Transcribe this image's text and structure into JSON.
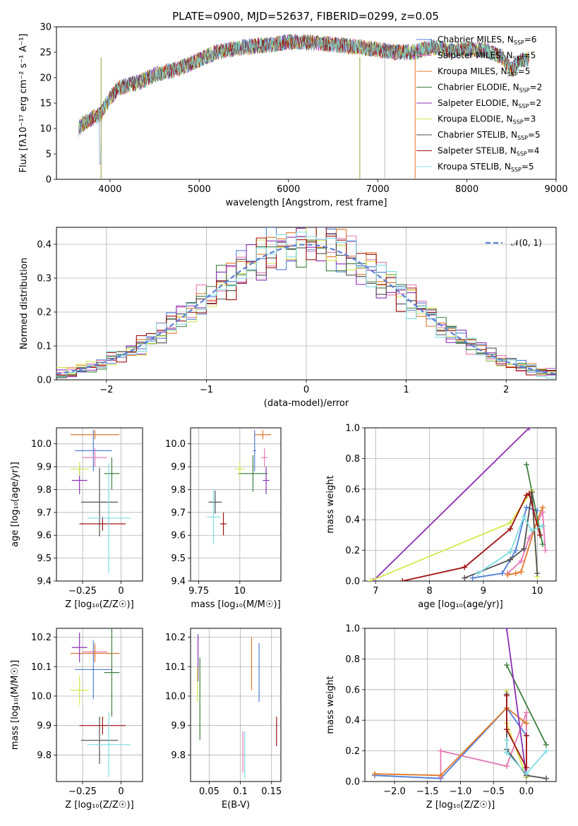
{
  "title": "PLATE=0900, MJD=52637, FIBERID=0299, z=0.05",
  "colors": {
    "Chabrier MILES": "#4f7ed8",
    "Salpeter MILES": "#e678b4",
    "Kroupa MILES": "#e0782a",
    "Chabrier ELODIE": "#3f7f3f",
    "Salpeter ELODIE": "#8b2fb5",
    "Kroupa ELODIE": "#d4e84a",
    "Chabrier STELIB": "#505050",
    "Salpeter STELIB": "#a01010",
    "Kroupa STELIB": "#7fdce0"
  },
  "chart_data": [
    {
      "id": "spectrum",
      "type": "line",
      "xlabel": "wavelength [Angstrom, rest frame]",
      "ylabel": "Flux [fλ10⁻¹⁷ erg cm⁻² s⁻¹ A⁻¹]",
      "xlim": [
        3400,
        9000
      ],
      "ylim": [
        0,
        30
      ],
      "xticks": [
        4000,
        5000,
        6000,
        7000,
        8000,
        9000
      ],
      "yticks": [
        0,
        5,
        10,
        15,
        20,
        25,
        30
      ],
      "legend_position": "top-right",
      "series": [
        {
          "name": "Chabrier MILES, N_SSP=6",
          "label_main": "Chabrier MILES, N",
          "label_sub": "SSP",
          "label_tail": "=6"
        },
        {
          "name": "Salpeter MILES, N_SSP=5",
          "label_main": "Salpeter MILES, N",
          "label_sub": "SSP",
          "label_tail": "=5"
        },
        {
          "name": "Kroupa MILES, N_SSP=5",
          "label_main": "Kroupa MILES, N",
          "label_sub": "SSP",
          "label_tail": "=5"
        },
        {
          "name": "Chabrier ELODIE, N_SSP=2",
          "label_main": "Chabrier ELODIE, N",
          "label_sub": "SSP",
          "label_tail": "=2"
        },
        {
          "name": "Salpeter ELODIE, N_SSP=2",
          "label_main": "Salpeter ELODIE, N",
          "label_sub": "SSP",
          "label_tail": "=2"
        },
        {
          "name": "Kroupa ELODIE, N_SSP=3",
          "label_main": "Kroupa ELODIE, N",
          "label_sub": "SSP",
          "label_tail": "=3"
        },
        {
          "name": "Chabrier STELIB, N_SSP=5",
          "label_main": "Chabrier STELIB, N",
          "label_sub": "SSP",
          "label_tail": "=5"
        },
        {
          "name": "Salpeter STELIB, N_SSP=4",
          "label_main": "Salpeter STELIB, N",
          "label_sub": "SSP",
          "label_tail": "=4"
        },
        {
          "name": "Kroupa STELIB, N_SSP=5",
          "label_main": "Kroupa STELIB, N",
          "label_sub": "SSP",
          "label_tail": "=5"
        }
      ],
      "continuum": {
        "x": [
          3650,
          3700,
          3800,
          3900,
          4000,
          4100,
          4300,
          4500,
          4800,
          5000,
          5200,
          5500,
          5800,
          6000,
          6200,
          6500,
          6800,
          7000,
          7200,
          7400,
          7600,
          7800,
          8000,
          8200,
          8400,
          8500,
          8600,
          8700
        ],
        "y": [
          10,
          11,
          12,
          13,
          16,
          18,
          19,
          20.5,
          22,
          23.5,
          25,
          26,
          26.5,
          27,
          27,
          26.5,
          26,
          25.5,
          25,
          25,
          26,
          25.5,
          25.5,
          25.5,
          24,
          21.5,
          23.5,
          23.5
        ]
      }
    },
    {
      "id": "residuals",
      "type": "line",
      "xlabel": "(data-model)/error",
      "ylabel": "Normed distribution",
      "xlim": [
        -2.5,
        2.5
      ],
      "ylim": [
        0,
        0.45
      ],
      "xticks": [
        -2,
        -1,
        0,
        1,
        2
      ],
      "yticks": [
        0.0,
        0.1,
        0.2,
        0.3,
        0.4
      ],
      "grid": true,
      "legend": "𝒩(0, 1)",
      "legend_position": "top-right",
      "gaussian": {
        "mean": 0,
        "sigma": 1
      }
    },
    {
      "id": "age-vs-Z",
      "type": "scatter",
      "xlabel": "Z [log₁₀(Z/Z☉)]",
      "ylabel": "age  [log₁₀(age/yr)]",
      "xlim": [
        -0.42,
        0.14
      ],
      "ylim": [
        9.4,
        10.07
      ],
      "xticks": [
        -0.25,
        0.0
      ],
      "yticks": [
        9.4,
        9.5,
        9.6,
        9.7,
        9.8,
        9.9,
        10.0
      ],
      "grid": true,
      "points": [
        {
          "model": "Chabrier MILES",
          "x": -0.18,
          "xerr": 0.12,
          "y": 9.97,
          "yerr": 0.09
        },
        {
          "model": "Salpeter MILES",
          "x": -0.17,
          "xerr": 0.08,
          "y": 9.94,
          "yerr": 0.04
        },
        {
          "model": "Kroupa MILES",
          "x": -0.17,
          "xerr": 0.16,
          "y": 10.04,
          "yerr": 0.02
        },
        {
          "model": "Chabrier ELODIE",
          "x": -0.06,
          "xerr": 0.05,
          "y": 9.87,
          "yerr": 0.07
        },
        {
          "model": "Salpeter ELODIE",
          "x": -0.27,
          "xerr": 0.05,
          "y": 9.84,
          "yerr": 0.06
        },
        {
          "model": "Kroupa ELODIE",
          "x": -0.27,
          "xerr": 0.06,
          "y": 9.89,
          "yerr": 0.03
        },
        {
          "model": "Chabrier STELIB",
          "x": -0.14,
          "xerr": 0.12,
          "y": 9.745,
          "yerr": 0.15
        },
        {
          "model": "Salpeter STELIB",
          "x": -0.12,
          "xerr": 0.15,
          "y": 9.65,
          "yerr": 0.03
        },
        {
          "model": "Kroupa STELIB",
          "x": -0.08,
          "xerr": 0.14,
          "y": 9.675,
          "yerr": 0.24
        }
      ]
    },
    {
      "id": "age-vs-mass",
      "type": "scatter",
      "xlabel": "mass [log₁₀(M/M☉)]",
      "ylabel": "",
      "xlim": [
        9.7,
        10.25
      ],
      "ylim": [
        9.4,
        10.07
      ],
      "xticks": [
        9.75,
        10.0
      ],
      "yticks": [
        9.4,
        9.5,
        9.6,
        9.7,
        9.8,
        9.9,
        10.0
      ],
      "grid": true,
      "points": [
        {
          "model": "Chabrier MILES",
          "x": 10.09,
          "xerr": 0.01,
          "y": 9.97,
          "yerr": 0.09
        },
        {
          "model": "Salpeter MILES",
          "x": 10.15,
          "xerr": 0.02,
          "y": 9.94,
          "yerr": 0.04
        },
        {
          "model": "Kroupa MILES",
          "x": 10.14,
          "xerr": 0.05,
          "y": 10.04,
          "yerr": 0.02
        },
        {
          "model": "Chabrier ELODIE",
          "x": 10.08,
          "xerr": 0.09,
          "y": 9.87,
          "yerr": 0.08
        },
        {
          "model": "Salpeter ELODIE",
          "x": 10.16,
          "xerr": 0.02,
          "y": 9.84,
          "yerr": 0.06
        },
        {
          "model": "Kroupa ELODIE",
          "x": 10.0,
          "xerr": 0.03,
          "y": 9.89,
          "yerr": 0.03
        },
        {
          "model": "Chabrier STELIB",
          "x": 9.85,
          "xerr": 0.04,
          "y": 9.745,
          "yerr": 0.05
        },
        {
          "model": "Salpeter STELIB",
          "x": 9.9,
          "xerr": 0.02,
          "y": 9.65,
          "yerr": 0.05
        },
        {
          "model": "Kroupa STELIB",
          "x": 9.84,
          "xerr": 0.04,
          "y": 9.68,
          "yerr": 0.12
        }
      ]
    },
    {
      "id": "massweight-vs-age",
      "type": "line",
      "xlabel": "age  [log₁₀(age/yr)]",
      "ylabel": "mass weight",
      "xlim": [
        6.8,
        10.35
      ],
      "ylim": [
        0,
        1.0
      ],
      "xticks": [
        7,
        8,
        9,
        10
      ],
      "yticks": [
        0.0,
        0.2,
        0.4,
        0.6,
        0.8,
        1.0
      ],
      "grid": true,
      "series": [
        {
          "model": "Chabrier MILES",
          "x": [
            8.8,
            9.35,
            9.6,
            9.8,
            10.0
          ],
          "y": [
            0.02,
            0.05,
            0.2,
            0.48,
            0.46
          ]
        },
        {
          "model": "Salpeter MILES",
          "x": [
            9.45,
            9.7,
            9.85,
            10.1,
            10.15
          ],
          "y": [
            0.05,
            0.13,
            0.28,
            0.45,
            0.2
          ]
        },
        {
          "model": "Kroupa MILES",
          "x": [
            9.45,
            9.6,
            9.7,
            10.0,
            10.1
          ],
          "y": [
            0.04,
            0.05,
            0.06,
            0.4,
            0.48
          ]
        },
        {
          "model": "Chabrier ELODIE",
          "x": [
            9.8,
            10.1
          ],
          "y": [
            0.76,
            0.24
          ]
        },
        {
          "model": "Salpeter ELODIE",
          "x": [
            6.95,
            9.85
          ],
          "y": [
            0.0,
            1.0
          ]
        },
        {
          "model": "Kroupa ELODIE",
          "x": [
            6.9,
            9.5,
            9.9,
            10.0
          ],
          "y": [
            0.0,
            0.38,
            0.59,
            0.03
          ]
        },
        {
          "model": "Chabrier STELIB",
          "x": [
            8.65,
            9.5,
            9.75,
            9.9,
            10.0
          ],
          "y": [
            0.02,
            0.14,
            0.21,
            0.58,
            0.05
          ]
        },
        {
          "model": "Salpeter STELIB",
          "x": [
            7.5,
            8.65,
            9.5,
            9.8,
            9.85,
            10.05
          ],
          "y": [
            0.0,
            0.09,
            0.34,
            0.56,
            0.57,
            0.3
          ]
        },
        {
          "model": "Kroupa STELIB",
          "x": [
            8.9,
            9.5,
            9.75,
            9.9,
            10.1
          ],
          "y": [
            0.05,
            0.19,
            0.42,
            0.33,
            0.36
          ]
        }
      ]
    },
    {
      "id": "mass-vs-Z",
      "type": "scatter",
      "xlabel": "Z [log₁₀(Z/Z☉)]",
      "ylabel": "mass [log₁₀(M/M☉)]",
      "xlim": [
        -0.42,
        0.14
      ],
      "ylim": [
        9.71,
        10.23
      ],
      "xticks": [
        -0.25,
        0.0
      ],
      "yticks": [
        9.8,
        9.9,
        10.0,
        10.1,
        10.2
      ],
      "grid": true,
      "points": [
        {
          "model": "Chabrier MILES",
          "x": -0.18,
          "xerr": 0.12,
          "y": 10.09,
          "yerr": 0.1
        },
        {
          "model": "Salpeter MILES",
          "x": -0.17,
          "xerr": 0.08,
          "y": 10.15,
          "yerr": 0.03
        },
        {
          "model": "Kroupa MILES",
          "x": -0.17,
          "xerr": 0.16,
          "y": 10.145,
          "yerr": 0.03
        },
        {
          "model": "Chabrier ELODIE",
          "x": -0.06,
          "xerr": 0.05,
          "y": 10.08,
          "yerr": 0.15
        },
        {
          "model": "Salpeter ELODIE",
          "x": -0.27,
          "xerr": 0.05,
          "y": 10.165,
          "yerr": 0.05
        },
        {
          "model": "Kroupa ELODIE",
          "x": -0.27,
          "xerr": 0.06,
          "y": 10.02,
          "yerr": 0.05
        },
        {
          "model": "Chabrier STELIB",
          "x": -0.14,
          "xerr": 0.12,
          "y": 9.85,
          "yerr": 0.08
        },
        {
          "model": "Salpeter STELIB",
          "x": -0.12,
          "xerr": 0.15,
          "y": 9.9,
          "yerr": 0.03
        },
        {
          "model": "Kroupa STELIB",
          "x": -0.08,
          "xerr": 0.14,
          "y": 9.835,
          "yerr": 0.11
        }
      ]
    },
    {
      "id": "mass-vs-EBV",
      "type": "scatter",
      "xlabel": "E(B-V)",
      "ylabel": "",
      "xlim": [
        0.02,
        0.165
      ],
      "ylim": [
        9.71,
        10.23
      ],
      "xticks": [
        0.05,
        0.1,
        0.15
      ],
      "yticks": [
        9.8,
        9.9,
        10.0,
        10.1,
        10.2
      ],
      "grid": true,
      "points": [
        {
          "model": "Chabrier MILES",
          "x": 0.13,
          "y": 10.08,
          "yerr": 0.1
        },
        {
          "model": "Kroupa MILES",
          "x": 0.118,
          "y": 10.11,
          "yerr": 0.09
        },
        {
          "model": "Salpeter STELIB",
          "x": 0.158,
          "y": 9.88,
          "yerr": 0.05
        },
        {
          "model": "Kroupa STELIB",
          "x": 0.107,
          "y": 9.8,
          "yerr": 0.08
        },
        {
          "model": "Chabrier ELODIE",
          "x": 0.035,
          "y": 9.99,
          "yerr": 0.14
        },
        {
          "model": "Salpeter ELODIE",
          "x": 0.032,
          "y": 10.13,
          "yerr": 0.08
        },
        {
          "model": "Kroupa ELODIE",
          "x": 0.031,
          "y": 10.04,
          "yerr": 0.06
        },
        {
          "model": "Salpeter MILES",
          "x": 0.104,
          "y": 9.81,
          "yerr": 0.07
        }
      ]
    },
    {
      "id": "massweight-vs-Z",
      "type": "line",
      "xlabel": "Z [log₁₀(Z/Z☉)]",
      "ylabel": "mass weight",
      "xlim": [
        -2.45,
        0.45
      ],
      "ylim": [
        0,
        1.0
      ],
      "xticks": [
        -2.0,
        -1.5,
        -1.0,
        -0.5,
        0.0
      ],
      "yticks": [
        0.0,
        0.2,
        0.4,
        0.6,
        0.8,
        1.0
      ],
      "grid": true,
      "series": [
        {
          "model": "Chabrier MILES",
          "x": [
            -2.3,
            -1.3,
            -0.3,
            0.0
          ],
          "y": [
            0.04,
            0.02,
            0.48,
            0.3
          ]
        },
        {
          "model": "Salpeter MILES",
          "x": [
            -1.3,
            -1.3,
            -0.3,
            0.0,
            0.0
          ],
          "y": [
            0.03,
            0.2,
            0.1,
            0.45,
            0.05
          ]
        },
        {
          "model": "Kroupa MILES",
          "x": [
            -2.3,
            -1.3,
            -0.3,
            0.0
          ],
          "y": [
            0.05,
            0.04,
            0.48,
            0.38
          ]
        },
        {
          "model": "Chabrier ELODIE",
          "x": [
            -0.3,
            0.3
          ],
          "y": [
            0.76,
            0.24
          ]
        },
        {
          "model": "Salpeter ELODIE",
          "x": [
            -0.3,
            0.0
          ],
          "y": [
            1.0,
            0.03
          ]
        },
        {
          "model": "Kroupa ELODIE",
          "x": [
            -0.3,
            -0.3,
            0.0
          ],
          "y": [
            0.59,
            0.38,
            0.03
          ]
        },
        {
          "model": "Chabrier STELIB",
          "x": [
            -0.3,
            -0.3,
            0.0,
            0.3
          ],
          "y": [
            0.57,
            0.21,
            0.04,
            0.02
          ]
        },
        {
          "model": "Salpeter STELIB",
          "x": [
            -0.3,
            -0.3,
            0.0,
            0.0
          ],
          "y": [
            0.56,
            0.34,
            0.09,
            0.3
          ]
        },
        {
          "model": "Kroupa STELIB",
          "x": [
            -0.3,
            -0.3,
            0.0,
            0.3
          ],
          "y": [
            0.27,
            0.19,
            0.05,
            0.2
          ]
        }
      ]
    }
  ]
}
